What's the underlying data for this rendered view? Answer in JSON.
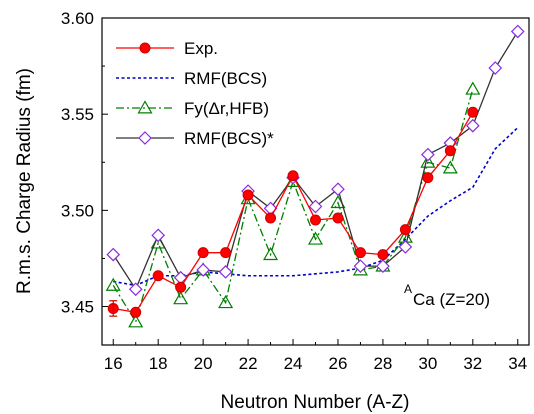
{
  "chart_data": {
    "type": "line",
    "title": "",
    "xlabel": "Neutron Number (A-Z)",
    "ylabel": "R.m.s. Charge Radius (fm)",
    "xlim": [
      15.5,
      34.5
    ],
    "ylim": [
      3.43,
      3.6
    ],
    "x_ticks": [
      16,
      18,
      20,
      22,
      24,
      26,
      28,
      30,
      32,
      34
    ],
    "x_tick_labels": [
      "16",
      "18",
      "20",
      "22",
      "24",
      "26",
      "28",
      "30",
      "32",
      "34"
    ],
    "y_ticks": [
      3.45,
      3.5,
      3.55,
      3.6
    ],
    "y_tick_labels": [
      "3.45",
      "3.50",
      "3.55",
      "3.60"
    ],
    "grid": false,
    "legend_position": "top-left",
    "annotation": {
      "superscript": "A",
      "text": "Ca (Z=20)"
    },
    "series": [
      {
        "name": "Exp.",
        "color": "#ff0000",
        "marker": "filled-circle",
        "line": "solid",
        "x": [
          16,
          17,
          18,
          19,
          20,
          21,
          22,
          23,
          24,
          25,
          26,
          27,
          28,
          29,
          30,
          31,
          32
        ],
        "y": [
          3.449,
          3.447,
          3.466,
          3.46,
          3.478,
          3.478,
          3.508,
          3.496,
          3.518,
          3.495,
          3.496,
          3.478,
          3.477,
          3.49,
          3.517,
          3.531,
          3.551
        ]
      },
      {
        "name": "RMF(BCS)",
        "color": "#0000cc",
        "marker": "none",
        "line": "dotted",
        "x": [
          16,
          17,
          18,
          19,
          20,
          21,
          22,
          23,
          24,
          25,
          26,
          27,
          28,
          29,
          30,
          31,
          32,
          33,
          34
        ],
        "y": [
          3.463,
          3.461,
          3.466,
          3.466,
          3.468,
          3.467,
          3.466,
          3.466,
          3.466,
          3.467,
          3.468,
          3.47,
          3.474,
          3.485,
          3.497,
          3.505,
          3.512,
          3.532,
          3.543
        ]
      },
      {
        "name": "Fy(Δr,HFB)",
        "color": "#008000",
        "marker": "open-triangle",
        "line": "dash-dot",
        "x": [
          16,
          17,
          18,
          19,
          20,
          21,
          22,
          23,
          24,
          25,
          26,
          27,
          28,
          29,
          30,
          31,
          32
        ],
        "y": [
          3.461,
          3.442,
          3.483,
          3.454,
          3.469,
          3.452,
          3.506,
          3.477,
          3.515,
          3.485,
          3.504,
          3.469,
          3.471,
          3.486,
          3.525,
          3.522,
          3.563
        ]
      },
      {
        "name": "RMF(BCS)*",
        "color": "#8a2be2",
        "line_color": "#333333",
        "marker": "open-diamond",
        "line": "solid",
        "x": [
          16,
          17,
          18,
          19,
          20,
          21,
          22,
          23,
          24,
          25,
          26,
          27,
          28,
          29,
          30,
          31,
          32,
          33,
          34
        ],
        "y": [
          3.477,
          3.459,
          3.487,
          3.465,
          3.469,
          3.468,
          3.51,
          3.501,
          3.517,
          3.502,
          3.511,
          3.471,
          3.471,
          3.481,
          3.529,
          3.535,
          3.544,
          3.574,
          3.593
        ]
      }
    ],
    "error_bars": [
      {
        "series": "Exp.",
        "x": 16,
        "y": 3.449,
        "err": 0.004
      }
    ]
  }
}
